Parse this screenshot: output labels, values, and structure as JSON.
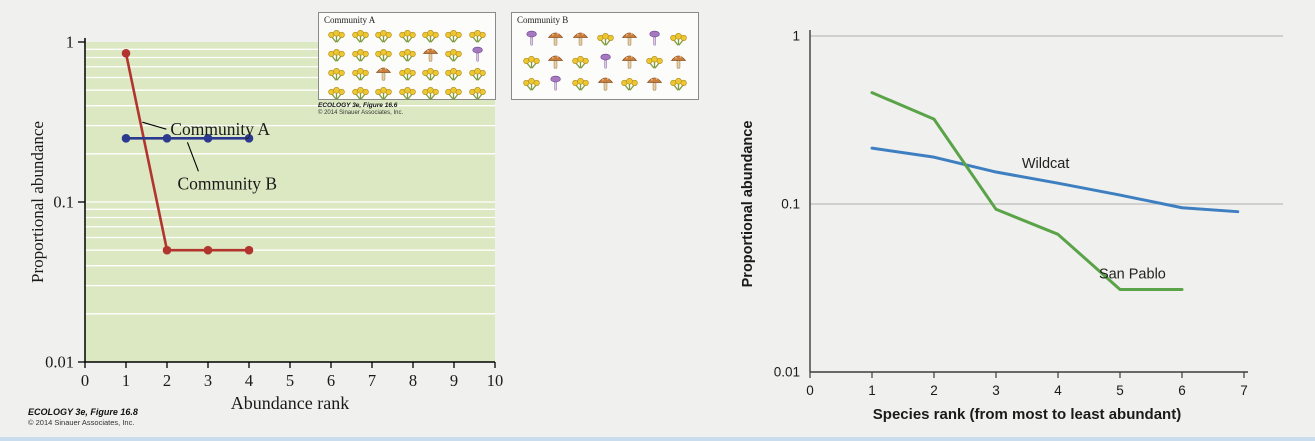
{
  "page": {
    "background": "#f0f0ee",
    "bottom_strip_color": "#c9dcee"
  },
  "chart_data": [
    {
      "id": "community-rank-abundance",
      "type": "line",
      "x_scale": "linear",
      "y_scale": "log",
      "xlabel": "Abundance rank",
      "ylabel": "Proportional abundance",
      "xlim": [
        0,
        10
      ],
      "ylim": [
        0.01,
        1
      ],
      "x_ticks": [
        0,
        1,
        2,
        3,
        4,
        5,
        6,
        7,
        8,
        9,
        10
      ],
      "y_ticks": [
        "1",
        "0.1",
        "0.01"
      ],
      "y_tick_values": [
        1,
        0.1,
        0.01
      ],
      "grid": "white log minor gridlines on green panel",
      "plot_background": "#dce8c2",
      "series": [
        {
          "name": "Community A",
          "color": "#b2342f",
          "markers": true,
          "x": [
            1,
            2,
            3,
            4
          ],
          "y": [
            0.85,
            0.05,
            0.05,
            0.05
          ]
        },
        {
          "name": "Community B",
          "color": "#2b3a8e",
          "markers": true,
          "x": [
            1,
            2,
            3,
            4
          ],
          "y": [
            0.25,
            0.25,
            0.25,
            0.25
          ]
        }
      ],
      "annotations": [
        {
          "text": "Community A"
        },
        {
          "text": "Community B"
        }
      ],
      "caption_title": "ECOLOGY 3e, Figure 16.8",
      "caption_credit": "© 2014 Sinauer Associates, Inc."
    },
    {
      "id": "site-species-rank",
      "type": "line",
      "x_scale": "linear",
      "y_scale": "log",
      "xlabel": "Species rank (from most to least abundant)",
      "ylabel": "Proportional abundance",
      "xlim": [
        0,
        7
      ],
      "ylim": [
        0.01,
        1
      ],
      "x_ticks": [
        0,
        1,
        2,
        3,
        4,
        5,
        6,
        7
      ],
      "y_ticks": [
        "1",
        "0.1",
        "0.01"
      ],
      "y_tick_values": [
        1,
        0.1,
        0.01
      ],
      "grid": "horizontal gray gridlines at 1 and 0.1",
      "gridline_color": "#bdbdbd",
      "series": [
        {
          "name": "Wildcat",
          "color": "#3e7fc1",
          "markers": false,
          "x": [
            1,
            2,
            3,
            4,
            5,
            6,
            6.9
          ],
          "y": [
            0.215,
            0.19,
            0.155,
            0.133,
            0.113,
            0.095,
            0.09
          ]
        },
        {
          "name": "San Pablo",
          "color": "#5aa348",
          "markers": false,
          "x": [
            1,
            2,
            3,
            4,
            5,
            6
          ],
          "y": [
            0.46,
            0.32,
            0.093,
            0.066,
            0.031,
            0.031
          ]
        }
      ],
      "annotations": [
        {
          "text": "Wildcat"
        },
        {
          "text": "San Pablo"
        }
      ]
    }
  ],
  "insets": {
    "caption_title": "ECOLOGY 3e, Figure 16.6",
    "caption_credit": "© 2014 Sinauer Associates, Inc.",
    "icon_types": {
      "Y": {
        "name": "yellow-flower-icon",
        "color": "#ecc730"
      },
      "M": {
        "name": "brown-mushroom-icon",
        "color": "#c97e3e"
      },
      "P": {
        "name": "purple-mushroom-icon",
        "color": "#a678c0"
      }
    },
    "panels": [
      {
        "title": "Community A",
        "rows": [
          "YYYYYYY",
          "YYYYMYP",
          "YYMYYYY",
          "YYYYYYY"
        ]
      },
      {
        "title": "Community B",
        "rows": [
          "PMMYMPY",
          "YMYPMYM",
          "YPYMYMY"
        ]
      }
    ]
  }
}
